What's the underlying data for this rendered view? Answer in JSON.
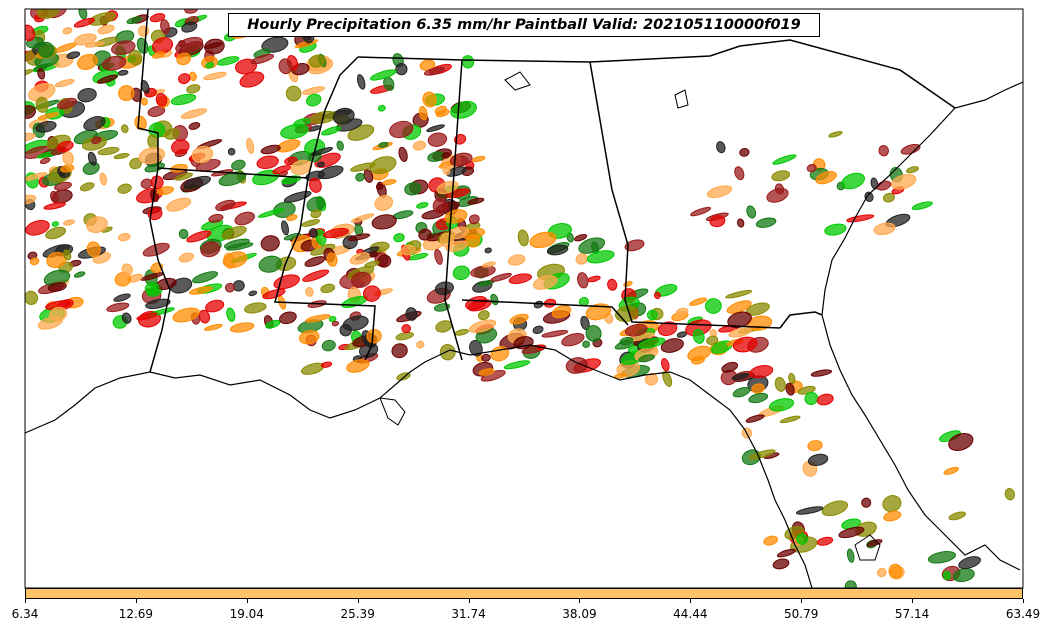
{
  "title": "Hourly Precipitation 6.35 mm/hr Paintball Valid: 202105110000f019",
  "colorbar": {
    "color": "#ffc266",
    "ticks": [
      "6.34",
      "12.69",
      "19.04",
      "25.39",
      "31.74",
      "38.09",
      "44.44",
      "50.79",
      "57.14",
      "63.49"
    ]
  },
  "palette": [
    "#e60000",
    "#ff8c00",
    "#ffa94d",
    "#00c800",
    "#137a13",
    "#8a8a00",
    "#6b0000",
    "#9b1b1b",
    "#222222"
  ],
  "map": {
    "region": "southeastern United States",
    "basemap": [
      "coastlines",
      "state borders"
    ]
  }
}
